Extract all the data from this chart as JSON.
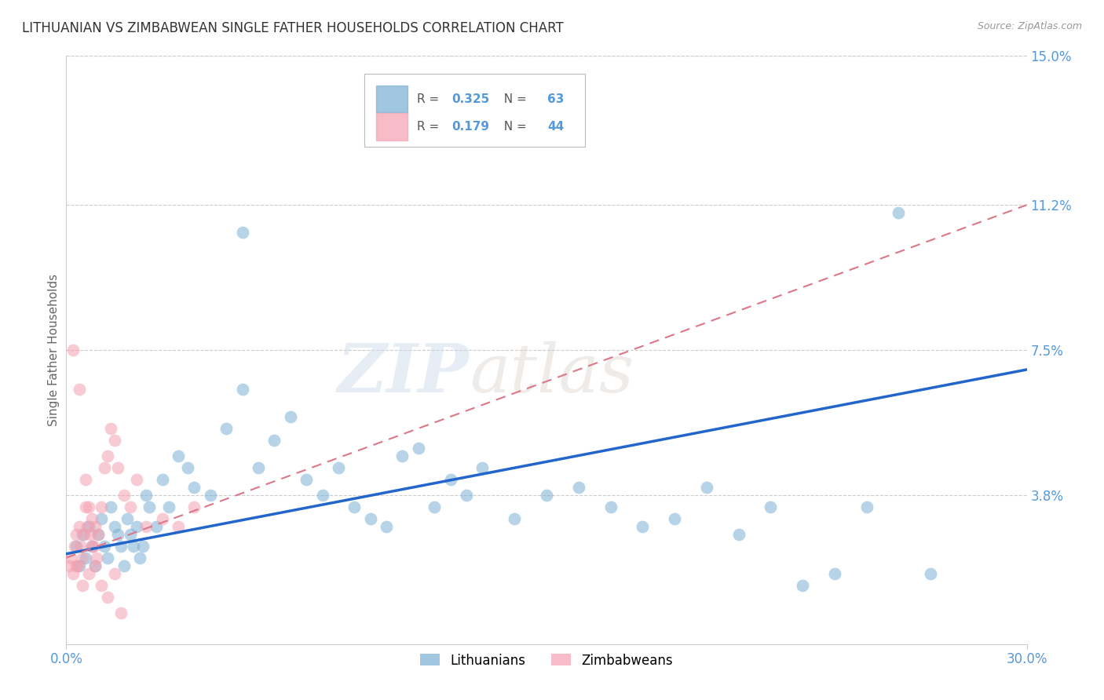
{
  "title": "LITHUANIAN VS ZIMBABWEAN SINGLE FATHER HOUSEHOLDS CORRELATION CHART",
  "source": "Source: ZipAtlas.com",
  "ylabel": "Single Father Households",
  "watermark_zip": "ZIP",
  "watermark_atlas": "atlas",
  "xlim": [
    0.0,
    30.0
  ],
  "ylim": [
    0.0,
    15.0
  ],
  "xtick_vals": [
    0.0,
    30.0
  ],
  "xtick_labels": [
    "0.0%",
    "30.0%"
  ],
  "yticks_right": [
    0.0,
    3.8,
    7.5,
    11.2,
    15.0
  ],
  "ytick_labels_right": [
    "",
    "3.8%",
    "7.5%",
    "11.2%",
    "15.0%"
  ],
  "grid_color": "#cccccc",
  "background_color": "#ffffff",
  "blue_color": "#7ab0d4",
  "pink_color": "#f4a0b0",
  "trend_blue_color": "#2266cc",
  "trend_pink_color": "#dd7788",
  "legend_R_blue": "0.325",
  "legend_N_blue": "63",
  "legend_R_pink": "0.179",
  "legend_N_pink": "44",
  "label_blue": "Lithuanians",
  "label_pink": "Zimbabweans",
  "axis_label_color": "#5599dd",
  "title_color": "#333333",
  "blue_trend_x0": 0.0,
  "blue_trend_y0": 2.3,
  "blue_trend_x1": 30.0,
  "blue_trend_y1": 7.0,
  "pink_trend_x0": 0.0,
  "pink_trend_y0": 2.2,
  "pink_trend_x1": 30.0,
  "pink_trend_y1": 11.2,
  "blue_scatter_x": [
    0.3,
    0.4,
    0.5,
    0.6,
    0.7,
    0.8,
    0.9,
    1.0,
    1.1,
    1.2,
    1.3,
    1.4,
    1.5,
    1.6,
    1.7,
    1.8,
    1.9,
    2.0,
    2.1,
    2.2,
    2.3,
    2.4,
    2.5,
    2.6,
    2.8,
    3.0,
    3.2,
    3.5,
    3.8,
    4.0,
    4.5,
    5.0,
    5.5,
    6.0,
    6.5,
    7.0,
    7.5,
    8.0,
    8.5,
    9.0,
    9.5,
    10.0,
    10.5,
    11.0,
    11.5,
    12.0,
    12.5,
    13.0,
    14.0,
    15.0,
    16.0,
    17.0,
    18.0,
    19.0,
    20.0,
    21.0,
    22.0,
    23.0,
    24.0,
    25.0,
    26.0,
    27.0,
    5.5
  ],
  "blue_scatter_y": [
    2.5,
    2.0,
    2.8,
    2.2,
    3.0,
    2.5,
    2.0,
    2.8,
    3.2,
    2.5,
    2.2,
    3.5,
    3.0,
    2.8,
    2.5,
    2.0,
    3.2,
    2.8,
    2.5,
    3.0,
    2.2,
    2.5,
    3.8,
    3.5,
    3.0,
    4.2,
    3.5,
    4.8,
    4.5,
    4.0,
    3.8,
    5.5,
    6.5,
    4.5,
    5.2,
    5.8,
    4.2,
    3.8,
    4.5,
    3.5,
    3.2,
    3.0,
    4.8,
    5.0,
    3.5,
    4.2,
    3.8,
    4.5,
    3.2,
    3.8,
    4.0,
    3.5,
    3.0,
    3.2,
    4.0,
    2.8,
    3.5,
    1.5,
    1.8,
    3.5,
    11.0,
    1.8,
    10.5
  ],
  "pink_scatter_x": [
    0.1,
    0.15,
    0.2,
    0.25,
    0.3,
    0.35,
    0.4,
    0.45,
    0.5,
    0.55,
    0.6,
    0.65,
    0.7,
    0.75,
    0.8,
    0.85,
    0.9,
    0.95,
    1.0,
    1.1,
    1.2,
    1.3,
    1.4,
    1.5,
    1.6,
    1.8,
    2.0,
    2.2,
    2.5,
    3.0,
    3.5,
    4.0,
    0.3,
    0.5,
    0.7,
    0.9,
    1.1,
    1.3,
    1.5,
    1.7,
    0.2,
    0.4,
    0.6,
    0.8
  ],
  "pink_scatter_y": [
    2.0,
    2.2,
    1.8,
    2.5,
    2.8,
    2.0,
    3.0,
    2.5,
    2.2,
    2.8,
    3.5,
    3.0,
    3.5,
    2.8,
    3.2,
    2.5,
    3.0,
    2.2,
    2.8,
    3.5,
    4.5,
    4.8,
    5.5,
    5.2,
    4.5,
    3.8,
    3.5,
    4.2,
    3.0,
    3.2,
    3.0,
    3.5,
    2.0,
    1.5,
    1.8,
    2.0,
    1.5,
    1.2,
    1.8,
    0.8,
    7.5,
    6.5,
    4.2,
    2.5
  ]
}
